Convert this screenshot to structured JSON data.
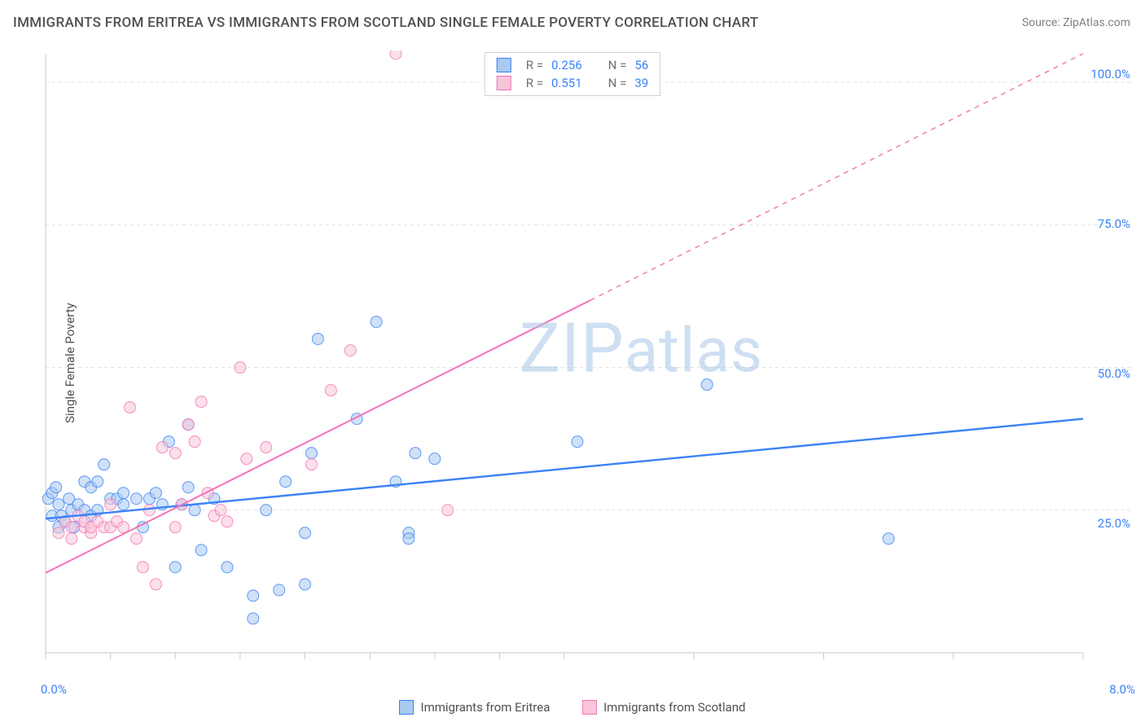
{
  "title": "IMMIGRANTS FROM ERITREA VS IMMIGRANTS FROM SCOTLAND SINGLE FEMALE POVERTY CORRELATION CHART",
  "source": "Source: ZipAtlas.com",
  "ylabel": "Single Female Poverty",
  "watermark": "ZIPatlas",
  "chart": {
    "type": "scatter",
    "xlim": [
      0.0,
      8.0
    ],
    "ylim": [
      0.0,
      105.0
    ],
    "x_ticks": [
      0.0,
      8.0
    ],
    "x_tick_labels": [
      "0.0%",
      "8.0%"
    ],
    "y_ticks": [
      25.0,
      50.0,
      75.0,
      100.0
    ],
    "y_tick_labels": [
      "25.0%",
      "50.0%",
      "75.0%",
      "100.0%"
    ],
    "background_color": "#ffffff",
    "grid_color": "#e2e2e2",
    "grid_dash": "4,4",
    "axis_color": "#c8c8c8",
    "marker_radius": 7,
    "marker_opacity": 0.55,
    "series": [
      {
        "name": "Immigrants from Eritrea",
        "color_stroke": "#3b82f6",
        "color_fill": "#a8c9f0",
        "R": "0.256",
        "N": "56",
        "trend": {
          "x1": 0.0,
          "y1": 23.5,
          "x2": 8.0,
          "y2": 41.0,
          "solid_until_x": 8.0,
          "width": 2.4
        },
        "points": [
          [
            0.02,
            27
          ],
          [
            0.05,
            24
          ],
          [
            0.05,
            28
          ],
          [
            0.08,
            29
          ],
          [
            0.1,
            22
          ],
          [
            0.1,
            26
          ],
          [
            0.12,
            24
          ],
          [
            0.15,
            23
          ],
          [
            0.18,
            27
          ],
          [
            0.2,
            25
          ],
          [
            0.22,
            22
          ],
          [
            0.25,
            26
          ],
          [
            0.3,
            25
          ],
          [
            0.3,
            30
          ],
          [
            0.35,
            24
          ],
          [
            0.35,
            29
          ],
          [
            0.4,
            25
          ],
          [
            0.4,
            30
          ],
          [
            0.45,
            33
          ],
          [
            0.5,
            27
          ],
          [
            0.55,
            27
          ],
          [
            0.6,
            26
          ],
          [
            0.6,
            28
          ],
          [
            0.7,
            27
          ],
          [
            0.75,
            22
          ],
          [
            0.8,
            27
          ],
          [
            0.85,
            28
          ],
          [
            0.9,
            26
          ],
          [
            0.95,
            37
          ],
          [
            1.0,
            15
          ],
          [
            1.05,
            26
          ],
          [
            1.1,
            40
          ],
          [
            1.1,
            29
          ],
          [
            1.15,
            25
          ],
          [
            1.2,
            18
          ],
          [
            1.3,
            27
          ],
          [
            1.4,
            15
          ],
          [
            1.6,
            6
          ],
          [
            1.6,
            10
          ],
          [
            1.7,
            25
          ],
          [
            1.8,
            11
          ],
          [
            1.85,
            30
          ],
          [
            2.0,
            21
          ],
          [
            2.0,
            12
          ],
          [
            2.05,
            35
          ],
          [
            2.1,
            55
          ],
          [
            2.4,
            41
          ],
          [
            2.55,
            58
          ],
          [
            2.7,
            30
          ],
          [
            2.8,
            21
          ],
          [
            2.8,
            20
          ],
          [
            2.85,
            35
          ],
          [
            3.0,
            34
          ],
          [
            4.1,
            37
          ],
          [
            5.1,
            47
          ],
          [
            6.5,
            20
          ]
        ]
      },
      {
        "name": "Immigrants from Scotland",
        "color_stroke": "#f472b6",
        "color_fill": "#f8c6d9",
        "R": "0.551",
        "N": "39",
        "trend": {
          "x1": 0.0,
          "y1": 14.0,
          "x2": 8.0,
          "y2": 105.0,
          "solid_until_x": 4.2,
          "width": 2.0
        },
        "points": [
          [
            0.1,
            21
          ],
          [
            0.15,
            23
          ],
          [
            0.2,
            20
          ],
          [
            0.2,
            22
          ],
          [
            0.25,
            24
          ],
          [
            0.3,
            22
          ],
          [
            0.3,
            23
          ],
          [
            0.35,
            21
          ],
          [
            0.35,
            22
          ],
          [
            0.4,
            23
          ],
          [
            0.45,
            22
          ],
          [
            0.5,
            22
          ],
          [
            0.5,
            26
          ],
          [
            0.55,
            23
          ],
          [
            0.6,
            22
          ],
          [
            0.65,
            43
          ],
          [
            0.7,
            20
          ],
          [
            0.75,
            15
          ],
          [
            0.8,
            25
          ],
          [
            0.85,
            12
          ],
          [
            0.9,
            36
          ],
          [
            1.0,
            35
          ],
          [
            1.0,
            22
          ],
          [
            1.05,
            26
          ],
          [
            1.1,
            40
          ],
          [
            1.15,
            37
          ],
          [
            1.2,
            44
          ],
          [
            1.25,
            28
          ],
          [
            1.3,
            24
          ],
          [
            1.35,
            25
          ],
          [
            1.4,
            23
          ],
          [
            1.5,
            50
          ],
          [
            1.55,
            34
          ],
          [
            1.7,
            36
          ],
          [
            2.05,
            33
          ],
          [
            2.2,
            46
          ],
          [
            2.35,
            53
          ],
          [
            2.7,
            105
          ],
          [
            3.1,
            25
          ]
        ]
      }
    ]
  },
  "bottom_legend": {
    "series1": "Immigrants from Eritrea",
    "series2": "Immigrants from Scotland"
  },
  "stats_legend": {
    "r_label": "R =",
    "n_label": "N ="
  }
}
